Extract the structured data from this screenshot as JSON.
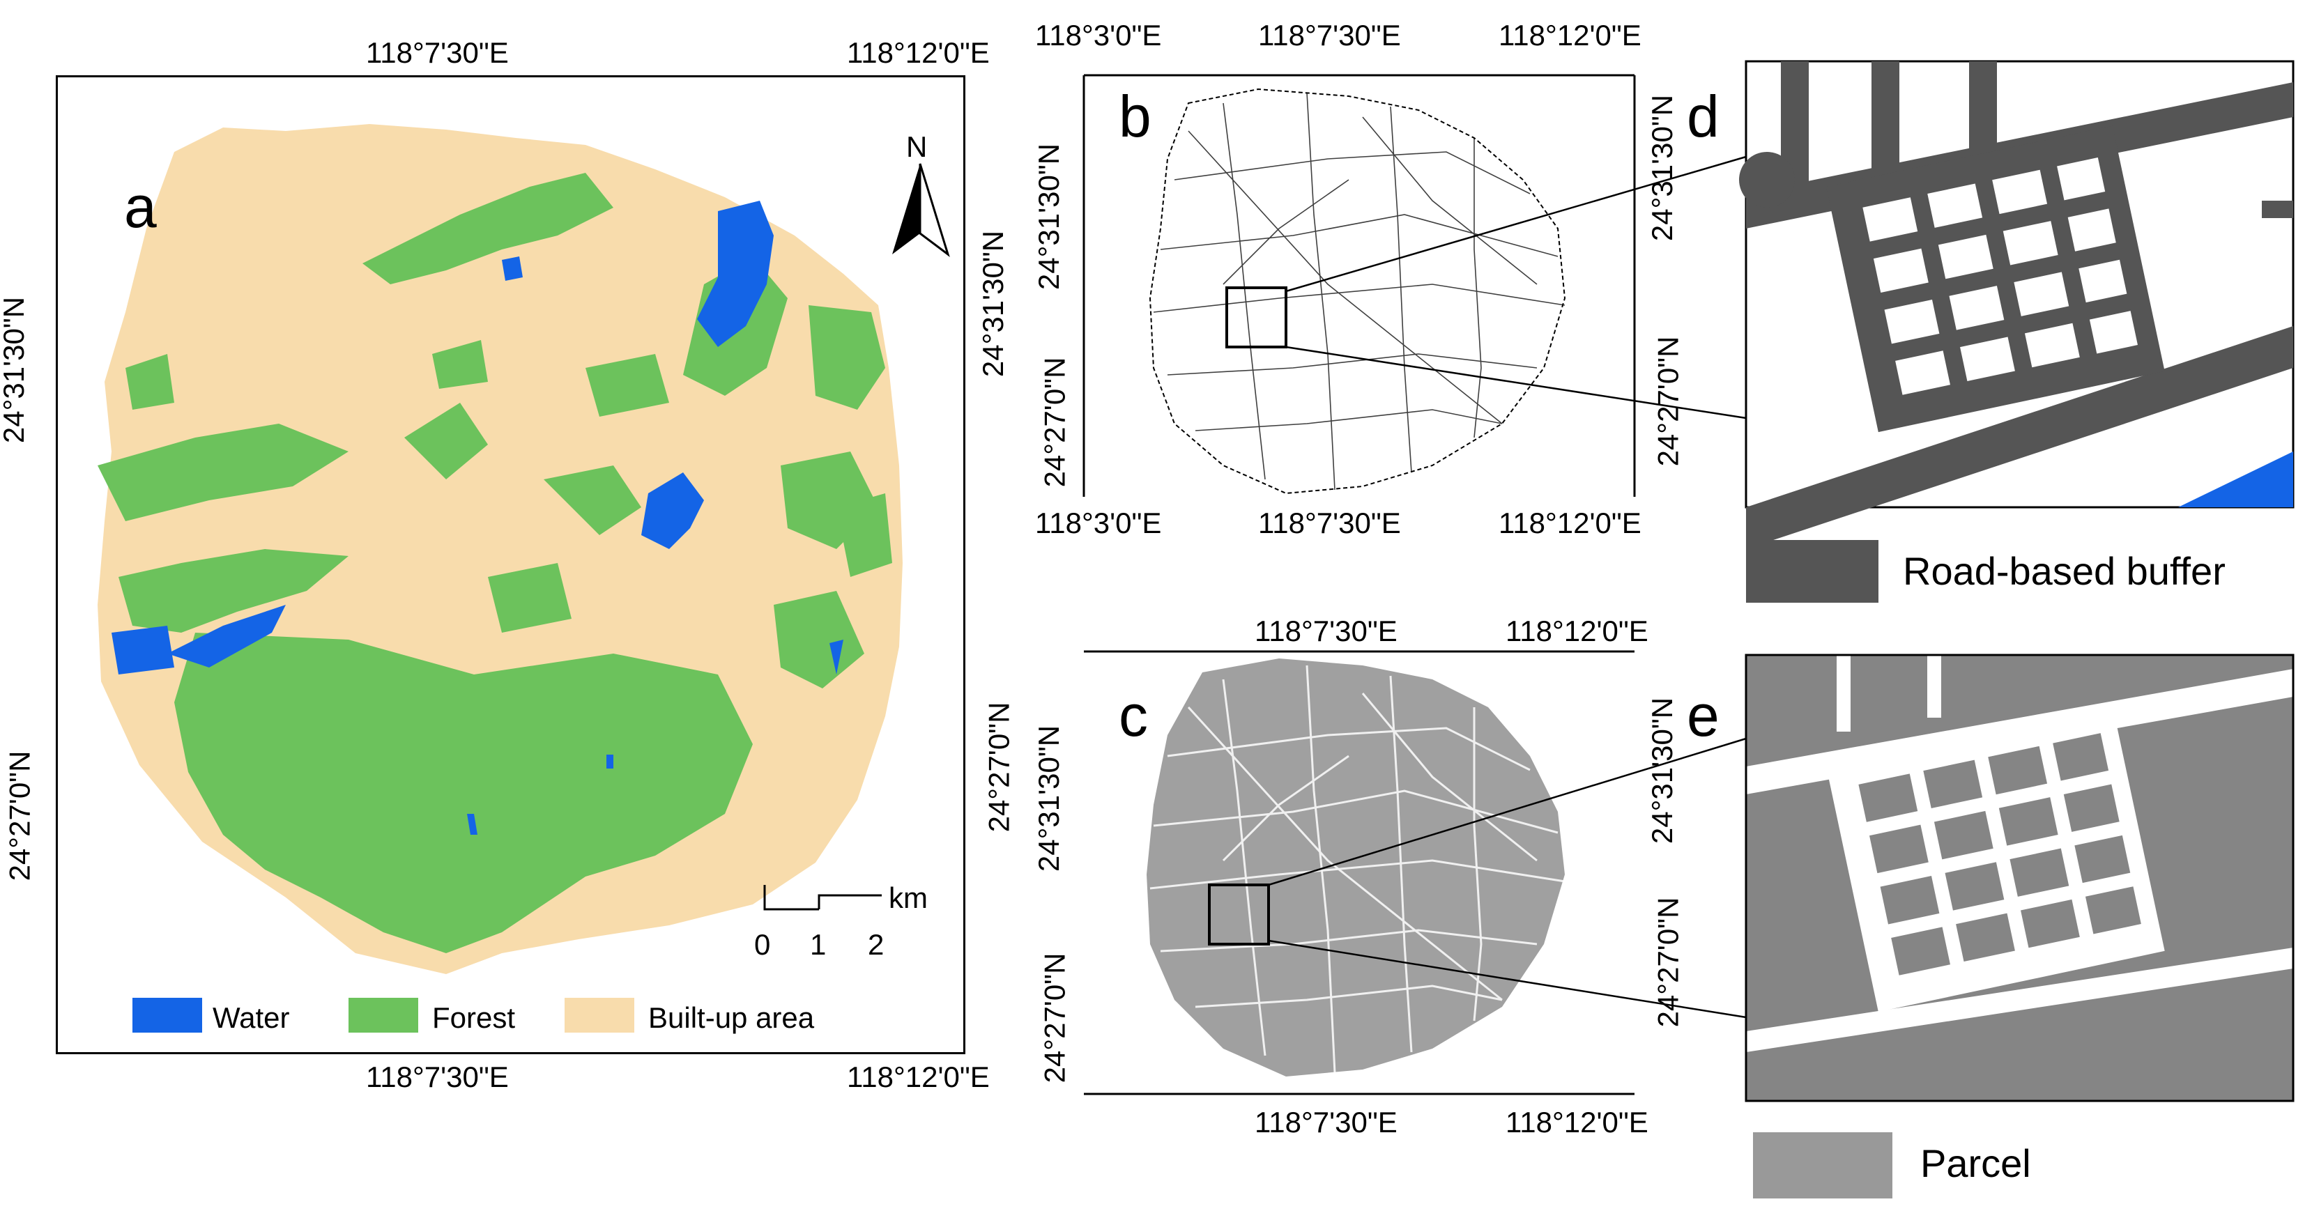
{
  "panels": {
    "a": {
      "letter": "a",
      "top_lon": [
        "118°7'30\"E",
        "118°12'0\"E"
      ],
      "bottom_lon": [
        "118°7'30\"E",
        "118°12'0\"E"
      ],
      "left_lat": [
        "24°31'30\"N",
        "24°27'0\"N"
      ],
      "right_lat": [
        "24°31'30\"N",
        "24°27'0\"N"
      ],
      "north": "N",
      "scale_unit": "km",
      "scale_ticks": [
        "0",
        "1",
        "2"
      ],
      "legend": [
        {
          "label": "Water",
          "color": "#1464e6"
        },
        {
          "label": "Forest",
          "color": "#6cc25c"
        },
        {
          "label": "Built-up area",
          "color": "#f8dcac"
        }
      ]
    },
    "b": {
      "letter": "b",
      "top_lon": [
        "118°3'0\"E",
        "118°7'30\"E",
        "118°12'0\"E"
      ],
      "bottom_lon": [
        "118°3'0\"E",
        "118°7'30\"E",
        "118°12'0\"E"
      ],
      "left_lat": [
        "24°31'30\"N",
        "24°27'0\"N"
      ],
      "right_lat": [
        "24°31'30\"N",
        "24°27'0\"N"
      ]
    },
    "c": {
      "letter": "c",
      "top_lon": [
        "118°7'30\"E",
        "118°12'0\"E"
      ],
      "bottom_lon": [
        "118°7'30\"E",
        "118°12'0\"E"
      ],
      "left_lat": [
        "24°31'30\"N",
        "24°27'0\"N"
      ],
      "right_lat": [
        "24°31'30\"N",
        "24°27'0\"N"
      ]
    },
    "d": {
      "letter": "d",
      "legend_label": "Road-based buffer",
      "legend_color": "#555555"
    },
    "e": {
      "letter": "e",
      "legend_label": "Parcel",
      "legend_color": "#999999"
    }
  },
  "colors": {
    "water": "#1464e6",
    "forest": "#6cc25c",
    "builtup": "#f8dcac",
    "road_gray": "#555555",
    "parcel_gray": "#858585",
    "parcel_light": "#a0a0a0"
  }
}
